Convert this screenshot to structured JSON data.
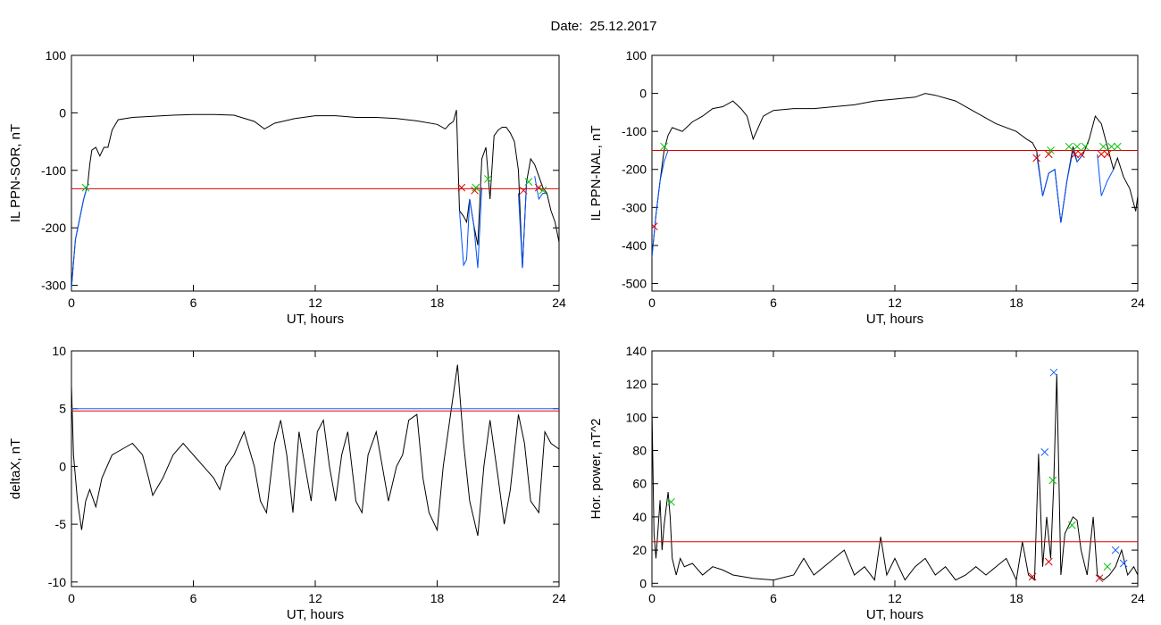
{
  "title_prefix": "Date:",
  "date": "25.12.2017",
  "chart_data": [
    {
      "id": "sor",
      "type": "line",
      "title": "",
      "xlabel": "UT, hours",
      "ylabel": "IL PPN-SOR, nT",
      "xlim": [
        0,
        24
      ],
      "ylim": [
        -310,
        100
      ],
      "xticks": [
        0,
        6,
        12,
        18,
        24
      ],
      "yticks": [
        -300,
        -200,
        -100,
        0,
        100
      ],
      "grid": false,
      "series": [
        {
          "color": "#000000",
          "x": [
            0,
            0.1,
            0.2,
            0.4,
            0.6,
            0.8,
            0.9,
            1.0,
            1.2,
            1.4,
            1.6,
            1.8,
            2.0,
            2.3,
            3.0,
            4.0,
            5.0,
            6.0,
            7.0,
            8.0,
            9.0,
            9.5,
            10.0,
            11.0,
            12.0,
            13.0,
            14.0,
            15.0,
            16.0,
            17.0,
            18.0,
            18.4,
            18.6,
            18.8,
            18.95,
            19.1,
            19.3,
            19.45,
            19.6,
            19.8,
            20.0,
            20.2,
            20.4,
            20.6,
            20.8,
            21.0,
            21.2,
            21.4,
            21.6,
            21.8,
            22.0,
            22.2,
            22.4,
            22.6,
            22.8,
            23.0,
            23.2,
            23.4,
            23.6,
            23.8,
            24.0
          ],
          "y": [
            -305,
            -260,
            -220,
            -185,
            -150,
            -125,
            -90,
            -65,
            -60,
            -75,
            -60,
            -60,
            -30,
            -12,
            -8,
            -6,
            -4,
            -3,
            -3,
            -4,
            -15,
            -28,
            -18,
            -10,
            -5,
            -5,
            -8,
            -8,
            -10,
            -14,
            -20,
            -28,
            -20,
            -15,
            5,
            -170,
            -180,
            -190,
            -150,
            -195,
            -230,
            -80,
            -60,
            -150,
            -40,
            -30,
            -25,
            -25,
            -35,
            -50,
            -100,
            -270,
            -120,
            -80,
            -90,
            -110,
            -130,
            -140,
            -170,
            -190,
            -225
          ]
        },
        {
          "color": "#0050ff",
          "x": [
            0,
            0.1,
            0.2,
            0.4,
            0.6,
            0.8
          ],
          "y": [
            -305,
            -260,
            -220,
            -185,
            -150,
            -125
          ]
        },
        {
          "color": "#0050ff",
          "x": [
            19.1,
            19.3,
            19.45,
            19.6,
            19.8,
            20.0,
            20.2
          ],
          "y": [
            -170,
            -265,
            -255,
            -150,
            -195,
            -270,
            -130
          ]
        },
        {
          "color": "#0050ff",
          "x": [
            22.0,
            22.2,
            22.4
          ],
          "y": [
            -140,
            -270,
            -120
          ]
        },
        {
          "color": "#0050ff",
          "x": [
            22.8,
            23.0,
            23.2,
            23.4
          ],
          "y": [
            -110,
            -150,
            -140,
            -140
          ]
        },
        {
          "color": "#e00000",
          "x": [
            0,
            24
          ],
          "y": [
            -132,
            -132
          ]
        }
      ],
      "markers": [
        {
          "color": "#e00000",
          "x": [
            19.2,
            19.85,
            22.25,
            23.0
          ],
          "y": [
            -130,
            -135,
            -135,
            -130
          ]
        },
        {
          "color": "#00c000",
          "x": [
            0.7,
            19.9,
            20.5,
            22.5,
            23.2
          ],
          "y": [
            -130,
            -130,
            -115,
            -120,
            -135
          ]
        }
      ]
    },
    {
      "id": "nal",
      "type": "line",
      "title": "",
      "xlabel": "UT, hours",
      "ylabel": "IL PPN-NAL, nT",
      "xlim": [
        0,
        24
      ],
      "ylim": [
        -520,
        100
      ],
      "xticks": [
        0,
        6,
        12,
        18,
        24
      ],
      "yticks": [
        -500,
        -400,
        -300,
        -200,
        -100,
        0,
        100
      ],
      "grid": false,
      "series": [
        {
          "color": "#000000",
          "x": [
            0,
            0.2,
            0.4,
            0.6,
            0.8,
            1.0,
            1.5,
            2.0,
            2.5,
            3.0,
            3.5,
            4.0,
            4.4,
            4.7,
            5.0,
            5.5,
            6.0,
            7.0,
            8.0,
            9.0,
            10.0,
            11.0,
            12.0,
            13.0,
            13.5,
            14.0,
            15.0,
            16.0,
            17.0,
            18.0,
            18.5,
            18.8,
            19.0,
            19.3,
            19.6,
            19.9,
            20.2,
            20.5,
            20.8,
            21.0,
            21.3,
            21.6,
            21.9,
            22.2,
            22.5,
            22.8,
            23.0,
            23.3,
            23.6,
            23.9,
            24.0
          ],
          "y": [
            -430,
            -320,
            -230,
            -150,
            -110,
            -90,
            -100,
            -75,
            -60,
            -40,
            -35,
            -20,
            -40,
            -60,
            -120,
            -60,
            -45,
            -40,
            -40,
            -35,
            -30,
            -20,
            -15,
            -10,
            0,
            -5,
            -20,
            -50,
            -80,
            -100,
            -120,
            -130,
            -150,
            -270,
            -210,
            -200,
            -340,
            -230,
            -140,
            -180,
            -160,
            -120,
            -60,
            -80,
            -140,
            -200,
            -170,
            -220,
            -250,
            -310,
            -270
          ]
        },
        {
          "color": "#0050ff",
          "x": [
            0,
            0.2,
            0.4,
            0.6,
            0.8
          ],
          "y": [
            -430,
            -320,
            -230,
            -180,
            -150
          ]
        },
        {
          "color": "#0050ff",
          "x": [
            19.0,
            19.3,
            19.6,
            19.9,
            20.2,
            20.5,
            20.8,
            21.0,
            21.3
          ],
          "y": [
            -160,
            -270,
            -210,
            -200,
            -340,
            -230,
            -150,
            -180,
            -160
          ]
        },
        {
          "color": "#0050ff",
          "x": [
            22.0,
            22.2,
            22.5,
            22.8
          ],
          "y": [
            -160,
            -270,
            -230,
            -200
          ]
        },
        {
          "color": "#e00000",
          "x": [
            0,
            24
          ],
          "y": [
            -150,
            -150
          ]
        }
      ],
      "markers": [
        {
          "color": "#e00000",
          "x": [
            0.1,
            19.0,
            19.6,
            20.9,
            21.2,
            22.2,
            22.5
          ],
          "y": [
            -350,
            -170,
            -160,
            -160,
            -160,
            -160,
            -160
          ]
        },
        {
          "color": "#00c000",
          "x": [
            0.6,
            19.7,
            20.6,
            21.0,
            21.4,
            22.3,
            22.7,
            23.0
          ],
          "y": [
            -140,
            -150,
            -140,
            -140,
            -140,
            -140,
            -140,
            -140
          ]
        }
      ]
    },
    {
      "id": "deltax",
      "type": "line",
      "title": "",
      "xlabel": "UT, hours",
      "ylabel": "deltaX, nT",
      "xlim": [
        0,
        24
      ],
      "ylim": [
        -10.4,
        10
      ],
      "xticks": [
        0,
        6,
        12,
        18,
        24
      ],
      "yticks": [
        -10,
        -5,
        0,
        5,
        10
      ],
      "grid": false,
      "series": [
        {
          "color": "#000000",
          "x": [
            0,
            0.1,
            0.3,
            0.5,
            0.7,
            0.9,
            1.2,
            1.5,
            2.0,
            2.5,
            3.0,
            3.5,
            3.8,
            4.0,
            4.5,
            5.0,
            5.5,
            6.0,
            6.5,
            7.0,
            7.3,
            7.6,
            8.0,
            8.5,
            9.0,
            9.3,
            9.6,
            10.0,
            10.3,
            10.6,
            10.9,
            11.2,
            11.5,
            11.8,
            12.1,
            12.4,
            12.7,
            13.0,
            13.3,
            13.6,
            14.0,
            14.3,
            14.6,
            15.0,
            15.3,
            15.6,
            16.0,
            16.3,
            16.6,
            17.0,
            17.3,
            17.6,
            18.0,
            18.3,
            18.7,
            19.0,
            19.3,
            19.6,
            20.0,
            20.3,
            20.6,
            21.0,
            21.3,
            21.6,
            22.0,
            22.3,
            22.6,
            23.0,
            23.3,
            23.6,
            24.0
          ],
          "y": [
            7,
            1,
            -3,
            -5.5,
            -3,
            -2,
            -3.5,
            -1,
            1,
            1.5,
            2,
            1,
            -1,
            -2.5,
            -1,
            1,
            2,
            1,
            0,
            -1,
            -2,
            0,
            1,
            3,
            0,
            -3,
            -4,
            2,
            4,
            1,
            -4,
            3,
            0,
            -3,
            3,
            4,
            0,
            -3,
            1,
            3,
            -3,
            -4,
            1,
            3,
            0,
            -3,
            0,
            1,
            4,
            4.5,
            -1,
            -4,
            -5.5,
            0,
            5,
            8.8,
            2,
            -3,
            -6,
            0,
            4,
            -1,
            -5,
            -2,
            4.5,
            2,
            -3,
            -4,
            3,
            2,
            1.5
          ]
        },
        {
          "color": "#e00000",
          "x": [
            0,
            24
          ],
          "y": [
            4.8,
            4.8
          ]
        },
        {
          "color": "#2060ff",
          "x": [
            0,
            24
          ],
          "y": [
            5.0,
            5.0
          ]
        }
      ],
      "markers": []
    },
    {
      "id": "power",
      "type": "line",
      "title": "",
      "xlabel": "UT, hours",
      "ylabel": "Hor. power, nT^2",
      "xlim": [
        0,
        24
      ],
      "ylim": [
        -2,
        140
      ],
      "xticks": [
        0,
        6,
        12,
        18,
        24
      ],
      "yticks": [
        0,
        20,
        40,
        60,
        80,
        100,
        120,
        140
      ],
      "grid": false,
      "series": [
        {
          "color": "#000000",
          "x": [
            0,
            0.1,
            0.2,
            0.4,
            0.5,
            0.6,
            0.8,
            0.9,
            1.0,
            1.2,
            1.4,
            1.6,
            2.0,
            2.5,
            3.0,
            3.5,
            4.0,
            5.0,
            6.0,
            7.0,
            7.5,
            8.0,
            8.5,
            9.0,
            9.5,
            10.0,
            10.5,
            11.0,
            11.3,
            11.6,
            12.0,
            12.5,
            13.0,
            13.5,
            14.0,
            14.5,
            15.0,
            15.5,
            16.0,
            16.5,
            17.0,
            17.5,
            18.0,
            18.3,
            18.6,
            18.9,
            19.1,
            19.3,
            19.5,
            19.7,
            19.85,
            20.0,
            20.2,
            20.4,
            20.6,
            20.8,
            21.0,
            21.2,
            21.5,
            21.8,
            22.0,
            22.3,
            22.6,
            22.9,
            23.2,
            23.5,
            23.8,
            24.0
          ],
          "y": [
            105,
            30,
            15,
            50,
            20,
            35,
            55,
            40,
            15,
            5,
            15,
            10,
            12,
            5,
            10,
            8,
            5,
            3,
            2,
            5,
            15,
            5,
            10,
            15,
            20,
            5,
            10,
            2,
            28,
            5,
            15,
            2,
            10,
            15,
            5,
            10,
            2,
            5,
            10,
            5,
            10,
            15,
            2,
            25,
            5,
            2,
            78,
            10,
            40,
            15,
            60,
            126,
            5,
            30,
            35,
            40,
            38,
            20,
            5,
            40,
            5,
            2,
            5,
            10,
            20,
            5,
            10,
            5
          ]
        },
        {
          "color": "#e00000",
          "x": [
            0,
            24
          ],
          "y": [
            25,
            25
          ]
        }
      ],
      "markers": [
        {
          "color": "#2060ff",
          "x": [
            19.4,
            19.85,
            22.9,
            23.3
          ],
          "y": [
            79,
            127,
            20,
            12
          ]
        },
        {
          "color": "#00c000",
          "x": [
            0.95,
            19.8,
            20.75,
            22.5
          ],
          "y": [
            49,
            62,
            35,
            10
          ]
        },
        {
          "color": "#e00000",
          "x": [
            18.8,
            19.6,
            22.1
          ],
          "y": [
            4,
            13,
            3
          ]
        }
      ]
    }
  ]
}
